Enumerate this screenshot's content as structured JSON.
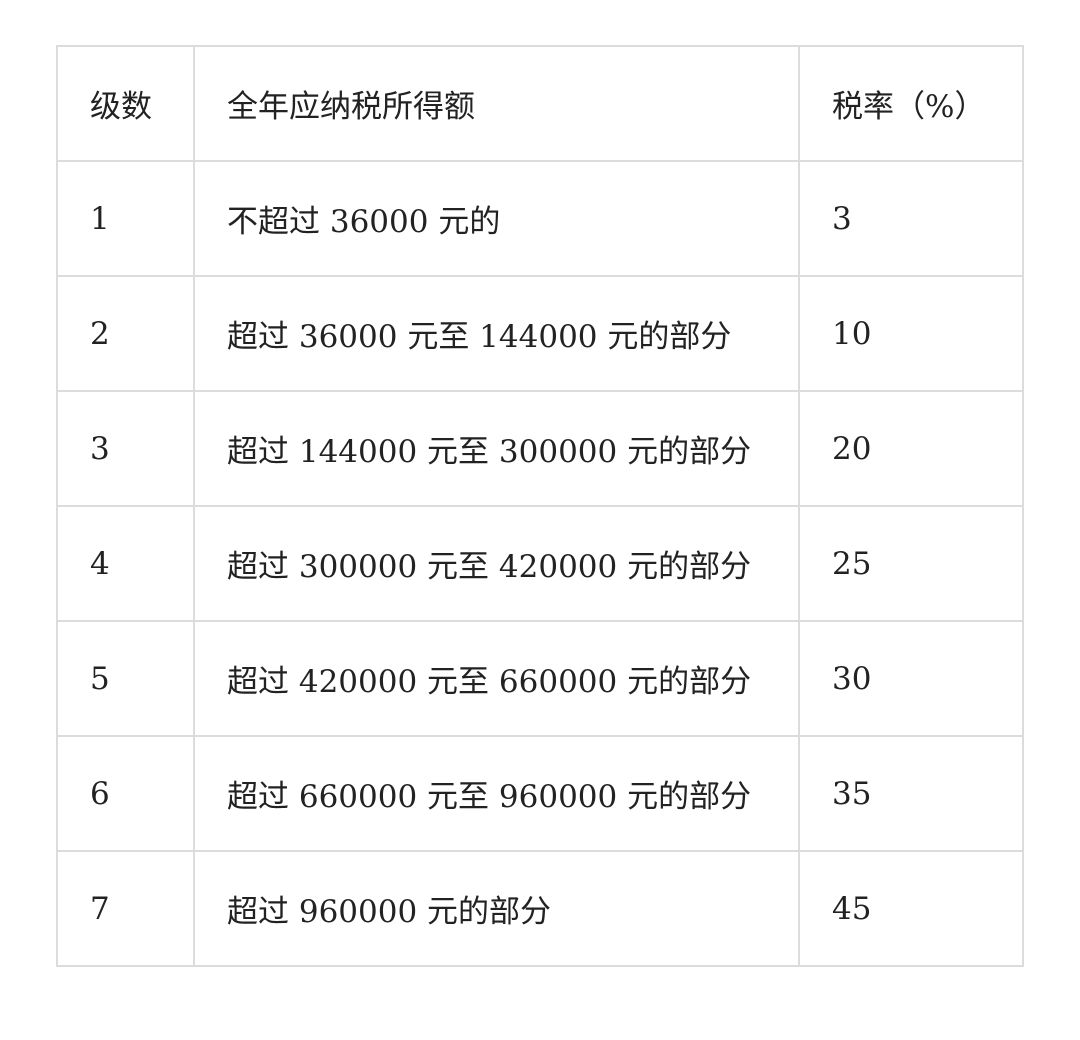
{
  "table": {
    "headers": [
      "级数",
      "全年应纳税所得额",
      "税率（%）"
    ],
    "rows": [
      [
        "1",
        "不超过 36000 元的",
        "3"
      ],
      [
        "2",
        "超过 36000 元至 144000 元的部分",
        "10"
      ],
      [
        "3",
        "超过 144000 元至 300000 元的部分",
        "20"
      ],
      [
        "4",
        "超过 300000 元至 420000 元的部分",
        "25"
      ],
      [
        "5",
        "超过 420000 元至 660000 元的部分",
        "30"
      ],
      [
        "6",
        "超过 660000 元至 960000 元的部分",
        "35"
      ],
      [
        "7",
        "超过 960000 元的部分",
        "45"
      ]
    ]
  }
}
